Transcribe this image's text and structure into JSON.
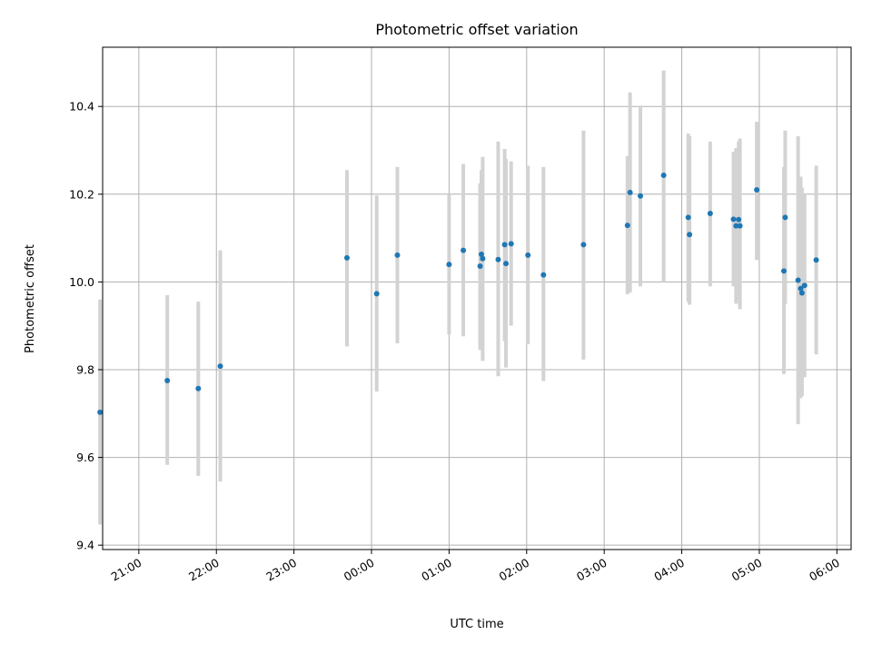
{
  "chart_data": {
    "type": "scatter",
    "title": "Photometric offset variation",
    "xlabel": "UTC time",
    "ylabel": "Photometric offset",
    "x_ticks": [
      "21:00",
      "22:00",
      "23:00",
      "00:00",
      "01:00",
      "02:00",
      "03:00",
      "04:00",
      "05:00",
      "06:00"
    ],
    "y_ticks": [
      "9.4",
      "9.6",
      "9.8",
      "10.0",
      "10.2",
      "10.4"
    ],
    "x_range": [
      "20:32",
      "06:11"
    ],
    "y_range": [
      9.39,
      10.535
    ],
    "grid": true,
    "colors": {
      "point": "#1f77b4",
      "errorbar": "#d3d3d3",
      "grid": "#b0b0b0",
      "axes": "#000000"
    },
    "points": [
      {
        "x": "20:30",
        "y": 9.703,
        "yerr_low": 9.447,
        "yerr_high": 9.96
      },
      {
        "x": "21:22",
        "y": 9.775,
        "yerr_low": 9.583,
        "yerr_high": 9.97
      },
      {
        "x": "21:46",
        "y": 9.757,
        "yerr_low": 9.558,
        "yerr_high": 9.955
      },
      {
        "x": "22:03",
        "y": 9.808,
        "yerr_low": 9.545,
        "yerr_high": 10.072
      },
      {
        "x": "23:41",
        "y": 10.055,
        "yerr_low": 9.853,
        "yerr_high": 10.255
      },
      {
        "x": "00:04",
        "y": 9.973,
        "yerr_low": 9.75,
        "yerr_high": 10.197
      },
      {
        "x": "00:20",
        "y": 10.061,
        "yerr_low": 9.86,
        "yerr_high": 10.262
      },
      {
        "x": "01:00",
        "y": 10.04,
        "yerr_low": 9.88,
        "yerr_high": 10.2
      },
      {
        "x": "01:11",
        "y": 10.072,
        "yerr_low": 9.876,
        "yerr_high": 10.269
      },
      {
        "x": "01:24",
        "y": 10.036,
        "yerr_low": 9.845,
        "yerr_high": 10.225
      },
      {
        "x": "01:25",
        "y": 10.063,
        "yerr_low": 9.87,
        "yerr_high": 10.255
      },
      {
        "x": "01:26",
        "y": 10.053,
        "yerr_low": 9.82,
        "yerr_high": 10.285
      },
      {
        "x": "01:38",
        "y": 10.051,
        "yerr_low": 9.785,
        "yerr_high": 10.32
      },
      {
        "x": "01:43",
        "y": 10.085,
        "yerr_low": 9.865,
        "yerr_high": 10.303
      },
      {
        "x": "01:44",
        "y": 10.042,
        "yerr_low": 9.805,
        "yerr_high": 10.28
      },
      {
        "x": "01:48",
        "y": 10.087,
        "yerr_low": 9.9,
        "yerr_high": 10.275
      },
      {
        "x": "02:01",
        "y": 10.061,
        "yerr_low": 9.858,
        "yerr_high": 10.265
      },
      {
        "x": "02:13",
        "y": 10.016,
        "yerr_low": 9.774,
        "yerr_high": 10.262
      },
      {
        "x": "02:44",
        "y": 10.085,
        "yerr_low": 9.823,
        "yerr_high": 10.345
      },
      {
        "x": "03:18",
        "y": 10.129,
        "yerr_low": 9.972,
        "yerr_high": 10.287
      },
      {
        "x": "03:20",
        "y": 10.204,
        "yerr_low": 9.976,
        "yerr_high": 10.432
      },
      {
        "x": "03:28",
        "y": 10.196,
        "yerr_low": 9.99,
        "yerr_high": 10.402
      },
      {
        "x": "03:46",
        "y": 10.243,
        "yerr_low": 10.0,
        "yerr_high": 10.482
      },
      {
        "x": "04:05",
        "y": 10.147,
        "yerr_low": 9.955,
        "yerr_high": 10.338
      },
      {
        "x": "04:06",
        "y": 10.108,
        "yerr_low": 9.948,
        "yerr_high": 10.332
      },
      {
        "x": "04:22",
        "y": 10.156,
        "yerr_low": 9.99,
        "yerr_high": 10.32
      },
      {
        "x": "04:40",
        "y": 10.143,
        "yerr_low": 9.99,
        "yerr_high": 10.297
      },
      {
        "x": "04:42",
        "y": 10.128,
        "yerr_low": 9.95,
        "yerr_high": 10.305
      },
      {
        "x": "04:44",
        "y": 10.142,
        "yerr_low": 9.96,
        "yerr_high": 10.32
      },
      {
        "x": "04:45",
        "y": 10.128,
        "yerr_low": 9.938,
        "yerr_high": 10.327
      },
      {
        "x": "04:58",
        "y": 10.21,
        "yerr_low": 10.05,
        "yerr_high": 10.365
      },
      {
        "x": "05:19",
        "y": 10.025,
        "yerr_low": 9.79,
        "yerr_high": 10.262
      },
      {
        "x": "05:20",
        "y": 10.147,
        "yerr_low": 9.95,
        "yerr_high": 10.345
      },
      {
        "x": "05:30",
        "y": 10.004,
        "yerr_low": 9.676,
        "yerr_high": 10.332
      },
      {
        "x": "05:32",
        "y": 9.985,
        "yerr_low": 9.735,
        "yerr_high": 10.24
      },
      {
        "x": "05:33",
        "y": 9.975,
        "yerr_low": 9.74,
        "yerr_high": 10.215
      },
      {
        "x": "05:35",
        "y": 9.992,
        "yerr_low": 9.783,
        "yerr_high": 10.2
      },
      {
        "x": "05:44",
        "y": 10.05,
        "yerr_low": 9.835,
        "yerr_high": 10.265
      }
    ]
  }
}
